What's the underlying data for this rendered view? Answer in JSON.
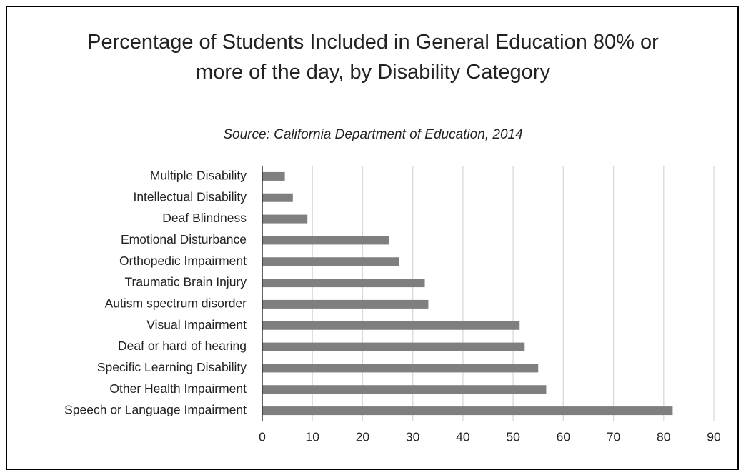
{
  "chart_data": {
    "type": "bar",
    "orientation": "horizontal",
    "title": "Percentage of Students Included in General Education 80% or more of the day, by Disability Category",
    "subtitle": "Source:  California Department of Education, 2014",
    "categories": [
      "Multiple Disability",
      "Intellectual Disability",
      "Deaf Blindness",
      "Emotional Disturbance",
      "Orthopedic Impairment",
      "Traumatic Brain Injury",
      "Autism spectrum disorder",
      "Visual Impairment",
      "Deaf or hard of hearing",
      "Specific Learning Disability",
      "Other Health Impairment",
      "Speech or Language Impairment"
    ],
    "values": [
      4.5,
      6.1,
      9,
      25.3,
      27.2,
      32.4,
      33.1,
      51.3,
      52.3,
      55,
      56.6,
      81.8
    ],
    "color": "#7f7f7f",
    "xlim": [
      0,
      90
    ],
    "xticks": [
      0,
      10,
      20,
      30,
      40,
      50,
      60,
      70,
      80,
      90
    ],
    "grid": true
  }
}
